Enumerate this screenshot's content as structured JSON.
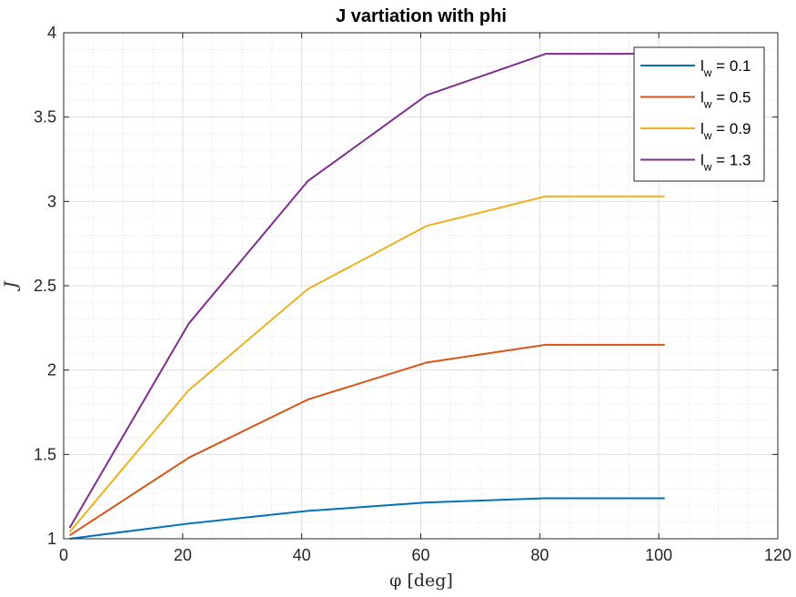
{
  "chart_data": {
    "type": "line",
    "title": "J vartiation with phi",
    "xlabel": "φ [deg]",
    "ylabel": "J",
    "xlim": [
      0,
      120
    ],
    "ylim": [
      1,
      4
    ],
    "xticks": [
      0,
      20,
      40,
      60,
      80,
      100,
      120
    ],
    "yticks": [
      1,
      1.5,
      2,
      2.5,
      3,
      3.5,
      4
    ],
    "ytick_labels": [
      "1",
      "1.5",
      "2",
      "2.5",
      "3",
      "3.5",
      "4"
    ],
    "grid": true,
    "minor_grid": true,
    "legend_position": "top-right",
    "x": [
      1,
      21,
      41,
      61,
      81,
      101
    ],
    "series": [
      {
        "name_main": "l",
        "name_sub": "w",
        "name_rest": " = 0.1",
        "color": "#0072BD",
        "values": [
          1.0,
          1.09,
          1.165,
          1.215,
          1.24,
          1.24
        ]
      },
      {
        "name_main": "l",
        "name_sub": "w",
        "name_rest": " = 0.5",
        "color": "#D95319",
        "values": [
          1.02,
          1.48,
          1.825,
          2.045,
          2.15,
          2.15
        ]
      },
      {
        "name_main": "l",
        "name_sub": "w",
        "name_rest": " = 0.9",
        "color": "#EDB120",
        "values": [
          1.04,
          1.88,
          2.48,
          2.855,
          3.03,
          3.03
        ]
      },
      {
        "name_main": "l",
        "name_sub": "w",
        "name_rest": " = 1.3",
        "color": "#7E2F8E",
        "values": [
          1.065,
          2.275,
          3.12,
          3.63,
          3.875,
          3.875
        ]
      }
    ]
  }
}
